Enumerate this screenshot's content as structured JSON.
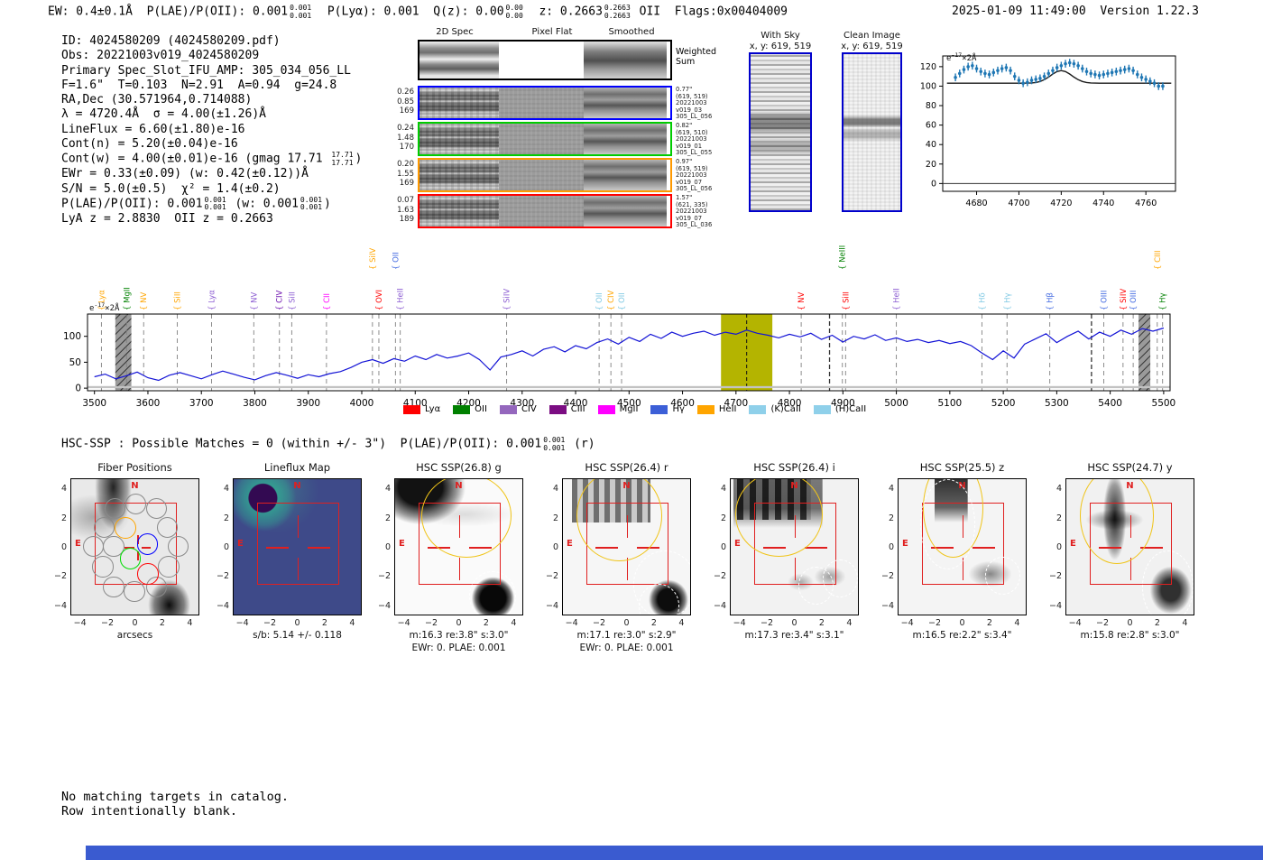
{
  "header": {
    "segments": [
      {
        "t": "EW: 0.4±0.1Å  P(LAE)/P(OII): 0.001"
      },
      {
        "up": "0.001",
        "dn": "0.001"
      },
      {
        "t": "  P(Lyα): 0.001  Q(z): 0.00"
      },
      {
        "up": "0.00",
        "dn": "0.00"
      },
      {
        "t": "  z: 0.2663"
      },
      {
        "up": "0.2663",
        "dn": "0.2663"
      },
      {
        "t": " OII  Flags:0x00404009"
      }
    ],
    "datetime_version": "2025-01-09 11:49:00  Version 1.22.3"
  },
  "info": {
    "lines": [
      [
        {
          "t": "ID: 4024580209 (4024580209.pdf)"
        }
      ],
      [
        {
          "t": "Obs: 20221003v019_4024580209"
        }
      ],
      [
        {
          "t": "Primary Spec_Slot_IFU_AMP: 305_034_056_LL"
        }
      ],
      [
        {
          "t": "F=1.6\"  T=0.103  N=2.91  A=0.94  g=24.8"
        }
      ],
      [
        {
          "t": "RA,Dec (30.571964,0.714088)"
        }
      ],
      [
        {
          "t": "λ = 4720.4Å  σ = 4.00(±1.26)Å"
        }
      ],
      [
        {
          "t": "LineFlux = 6.60(±1.80)e-16"
        }
      ],
      [
        {
          "t": "Cont(n) = 5.20(±0.04)e-16"
        }
      ],
      [
        {
          "t": "Cont(w) = 4.00(±0.01)e-16 (gmag 17.71 "
        },
        {
          "up": "17.71",
          "dn": "17.71"
        },
        {
          "t": ")"
        }
      ],
      [
        {
          "t": "EWr = 0.33(±0.09) (w: 0.42(±0.12))Å"
        }
      ],
      [
        {
          "t": "S/N = 5.0(±0.5)  χ² = 1.4(±0.2)"
        }
      ],
      [
        {
          "t": "P(LAE)/P(OII): 0.001"
        },
        {
          "up": "0.001",
          "dn": "0.001"
        },
        {
          "t": " (w: 0.001"
        },
        {
          "up": "0.001",
          "dn": "0.001"
        },
        {
          "t": ")"
        }
      ],
      [
        {
          "t": "LyA z = 2.8830  OII z = 0.2663"
        }
      ]
    ]
  },
  "spec2d": {
    "col_titles": [
      "2D Spec",
      "Pixel Flat",
      "Smoothed"
    ],
    "rows": [
      {
        "border": "#000000",
        "left": [],
        "right": [
          "Weighted",
          "Sum"
        ],
        "big_right": true
      },
      {
        "border": "#0000ff",
        "left": [
          "0.26",
          "0.85",
          "169"
        ],
        "right": [
          "0.77\"",
          "(619, 519)",
          "20221003",
          "v019_03",
          "305_LL_056"
        ]
      },
      {
        "border": "#00cc00",
        "left": [
          "0.24",
          "1.48",
          "170"
        ],
        "right": [
          "0.82\"",
          "(619, 510)",
          "20221003",
          "v019_01",
          "305_LL_055"
        ]
      },
      {
        "border": "#ff9900",
        "left": [
          "0.20",
          "1.55",
          "169"
        ],
        "right": [
          "0.97\"",
          "(619, 519)",
          "20221003",
          "v019_07",
          "305_LL_056"
        ]
      },
      {
        "border": "#ff0000",
        "left": [
          "0.07",
          "1.63",
          "189"
        ],
        "right": [
          "1.57\"",
          "(621, 335)",
          "20221003",
          "v019_07",
          "305_LL_036"
        ]
      }
    ]
  },
  "cutouts_top": [
    {
      "title": "With Sky",
      "sub": "x, y: 619, 519"
    },
    {
      "title": "Clean Image",
      "sub": "x, y: 619, 519"
    }
  ],
  "chart_data": [
    {
      "type": "scatter",
      "annotation": {
        "prefix": "e",
        "exp": "-17",
        "suffix": "×2Å"
      },
      "x_start": 4670,
      "x_step": 2,
      "values": [
        109,
        113,
        117,
        120,
        121,
        118,
        115,
        113,
        112,
        114,
        116,
        118,
        119,
        116,
        110,
        106,
        103,
        104,
        106,
        107,
        108,
        110,
        113,
        116,
        119,
        121,
        123,
        124,
        123,
        121,
        118,
        115,
        113,
        112,
        111,
        112,
        113,
        114,
        115,
        116,
        117,
        118,
        116,
        112,
        109,
        107,
        105,
        103,
        100,
        100
      ],
      "yerr": 4,
      "fit": {
        "continuum": 103,
        "amplitude": 13,
        "center": 4720,
        "sigma": 5
      },
      "xticks": [
        4680,
        4700,
        4720,
        4740,
        4760
      ],
      "yticks": [
        0,
        20,
        40,
        60,
        80,
        100,
        120
      ],
      "xlim": [
        4664,
        4774
      ],
      "ylim": [
        -8,
        131
      ],
      "point_color": "#1f77b4",
      "fit_color": "#1a1a1a"
    },
    {
      "type": "line",
      "annotation": {
        "prefix": "e",
        "exp": "-17",
        "suffix": "×2Å"
      },
      "x_start": 3500,
      "x_step": 20,
      "values": [
        22,
        27,
        18,
        24,
        31,
        20,
        15,
        25,
        30,
        24,
        18,
        26,
        33,
        27,
        21,
        16,
        24,
        30,
        25,
        19,
        26,
        22,
        28,
        32,
        40,
        50,
        55,
        48,
        57,
        52,
        62,
        55,
        65,
        58,
        62,
        68,
        55,
        35,
        60,
        65,
        72,
        62,
        75,
        80,
        70,
        82,
        76,
        88,
        95,
        85,
        98,
        90,
        104,
        96,
        108,
        100,
        106,
        110,
        102,
        108,
        104,
        112,
        106,
        102,
        97,
        104,
        99,
        106,
        94,
        102,
        89,
        100,
        95,
        103,
        92,
        97,
        90,
        94,
        88,
        92,
        86,
        90,
        82,
        68,
        55,
        72,
        58,
        85,
        95,
        105,
        88,
        100,
        110,
        95,
        108,
        100,
        112,
        104,
        115,
        110,
        116
      ],
      "color": "#1414d6",
      "xticks": [
        3500,
        3600,
        3700,
        3800,
        3900,
        4000,
        4100,
        4200,
        4300,
        4400,
        4500,
        4600,
        4700,
        4800,
        4900,
        5000,
        5100,
        5200,
        5300,
        5400,
        5500
      ],
      "yticks": [
        0,
        50,
        100
      ],
      "xlim": [
        3487,
        5512
      ],
      "ylim": [
        -5,
        143
      ],
      "bands": [
        {
          "x0": 3539,
          "x1": 3569,
          "style": "hatch"
        },
        {
          "x0": 4672,
          "x1": 4768,
          "style": "solid",
          "color": "#b4b400"
        },
        {
          "x0": 5453,
          "x1": 5475,
          "style": "hatch"
        }
      ],
      "marker_center": 4720,
      "bold_gridlines": [
        4875,
        5365
      ],
      "emission_lines": [
        {
          "label": "Lyα",
          "color": "#ffa500",
          "wl": 3513,
          "tier": 0
        },
        {
          "label": "MgII",
          "color": "#008000",
          "wl": 3560,
          "tier": 0
        },
        {
          "label": "NV",
          "color": "#ffa500",
          "wl": 3592,
          "tier": 0
        },
        {
          "label": "SiII",
          "color": "#ffa500",
          "wl": 3655,
          "tier": 0
        },
        {
          "label": "Lyα",
          "color": "#8a5ad1",
          "wl": 3719,
          "tier": 0
        },
        {
          "label": "NV",
          "color": "#8a5ad1",
          "wl": 3798,
          "tier": 0
        },
        {
          "label": "CIV",
          "color": "#6a0dad",
          "wl": 3846,
          "tier": 0
        },
        {
          "label": "SiII",
          "color": "#8a5ad1",
          "wl": 3869,
          "tier": 0
        },
        {
          "label": "CII",
          "color": "#ff00ff",
          "wl": 3934,
          "tier": 0
        },
        {
          "label": "SiIV",
          "color": "#ffa500",
          "wl": 4020,
          "tier": 1
        },
        {
          "label": "OVI",
          "color": "#ff0000",
          "wl": 4032,
          "tier": 0
        },
        {
          "label": "OII",
          "color": "#4169e1",
          "wl": 4063,
          "tier": 1
        },
        {
          "label": "HeII",
          "color": "#8a5ad1",
          "wl": 4072,
          "tier": 0
        },
        {
          "label": "SiIV",
          "color": "#8a5ad1",
          "wl": 4271,
          "tier": 0
        },
        {
          "label": "OII",
          "color": "#7ec8e3",
          "wl": 4444,
          "tier": 0
        },
        {
          "label": "CIV",
          "color": "#ffa500",
          "wl": 4466,
          "tier": 0
        },
        {
          "label": "OII",
          "color": "#7ec8e3",
          "wl": 4486,
          "tier": 0
        },
        {
          "label": "NV",
          "color": "#ff0000",
          "wl": 4822,
          "tier": 0
        },
        {
          "label": "NeIII",
          "color": "#008000",
          "wl": 4899,
          "tier": 1
        },
        {
          "label": "SiII",
          "color": "#ff0000",
          "wl": 4905,
          "tier": 0
        },
        {
          "label": "HeII",
          "color": "#8a5ad1",
          "wl": 5000,
          "tier": 0
        },
        {
          "label": "Hδ",
          "color": "#7ec8e3",
          "wl": 5160,
          "tier": 0
        },
        {
          "label": "Hγ",
          "color": "#7ec8e3",
          "wl": 5207,
          "tier": 0
        },
        {
          "label": "Hβ",
          "color": "#4169e1",
          "wl": 5287,
          "tier": 0
        },
        {
          "label": "OIII",
          "color": "#4169e1",
          "wl": 5388,
          "tier": 0
        },
        {
          "label": "SiIV",
          "color": "#ff0000",
          "wl": 5424,
          "tier": 0
        },
        {
          "label": "OIII",
          "color": "#4169e1",
          "wl": 5443,
          "tier": 0
        },
        {
          "label": "CIII",
          "color": "#ffa500",
          "wl": 5488,
          "tier": 1
        },
        {
          "label": "Hγ",
          "color": "#008000",
          "wl": 5498,
          "tier": 0
        }
      ],
      "legend": [
        {
          "label": "Lyα",
          "color": "#ff0000"
        },
        {
          "label": "OII",
          "color": "#008000"
        },
        {
          "label": "CIV",
          "color": "#9467bd"
        },
        {
          "label": "CIII",
          "color": "#7b0d82"
        },
        {
          "label": "MgII",
          "color": "#ff00ff"
        },
        {
          "label": "Hγ",
          "color": "#3c5fd7"
        },
        {
          "label": "HeII",
          "color": "#ffa500"
        },
        {
          "label": "(K)CaII",
          "color": "#8fd0ea"
        },
        {
          "label": "(H)CaII",
          "color": "#8fd0ea"
        }
      ]
    }
  ],
  "hsc": {
    "segments": [
      {
        "t": "HSC-SSP : Possible Matches = 0 (within +/- 3\")  P(LAE)/P(OII): 0.001"
      },
      {
        "up": "0.001",
        "dn": "0.001"
      },
      {
        "t": " (r)"
      }
    ]
  },
  "panels": [
    {
      "key": "fiber",
      "title": "Fiber Positions",
      "xlabel": "arcsecs",
      "caption": "",
      "caption2": ""
    },
    {
      "key": "lineflux",
      "title": "Lineflux Map",
      "xlabel": "",
      "caption": "s/b: 5.14 +/- 0.118",
      "caption2": ""
    },
    {
      "key": "g",
      "title": "HSC SSP(26.8) g",
      "xlabel": "",
      "caption": "m:16.3  re:3.8\"  s:3.0\"",
      "caption2": "EWr: 0. PLAE: 0.001"
    },
    {
      "key": "r",
      "title": "HSC SSP(26.4) r",
      "xlabel": "",
      "caption": "m:17.1  re:3.0\"  s:2.9\"",
      "caption2": "EWr: 0. PLAE: 0.001"
    },
    {
      "key": "i",
      "title": "HSC SSP(26.4) i",
      "xlabel": "",
      "caption": "m:17.3  re:3.4\"  s:3.1\"",
      "caption2": ""
    },
    {
      "key": "z",
      "title": "HSC SSP(25.5) z",
      "xlabel": "",
      "caption": "m:16.5  re:2.2\"  s:3.4\"",
      "caption2": ""
    },
    {
      "key": "y",
      "title": "HSC SSP(24.7) y",
      "xlabel": "",
      "caption": "m:15.8  re:2.8\"  s:3.0\"",
      "caption2": ""
    }
  ],
  "panel_axis": {
    "ticks": [
      "−4",
      "−2",
      "0",
      "2",
      "4"
    ],
    "tick_vals": [
      -4,
      -2,
      0,
      2,
      4
    ],
    "lim": 4.7,
    "north_label": "N",
    "east_label": "E"
  },
  "footer": {
    "lines": [
      "No matching targets in catalog.",
      "Row intentionally blank."
    ],
    "bar_color": "#3a5bd0"
  }
}
